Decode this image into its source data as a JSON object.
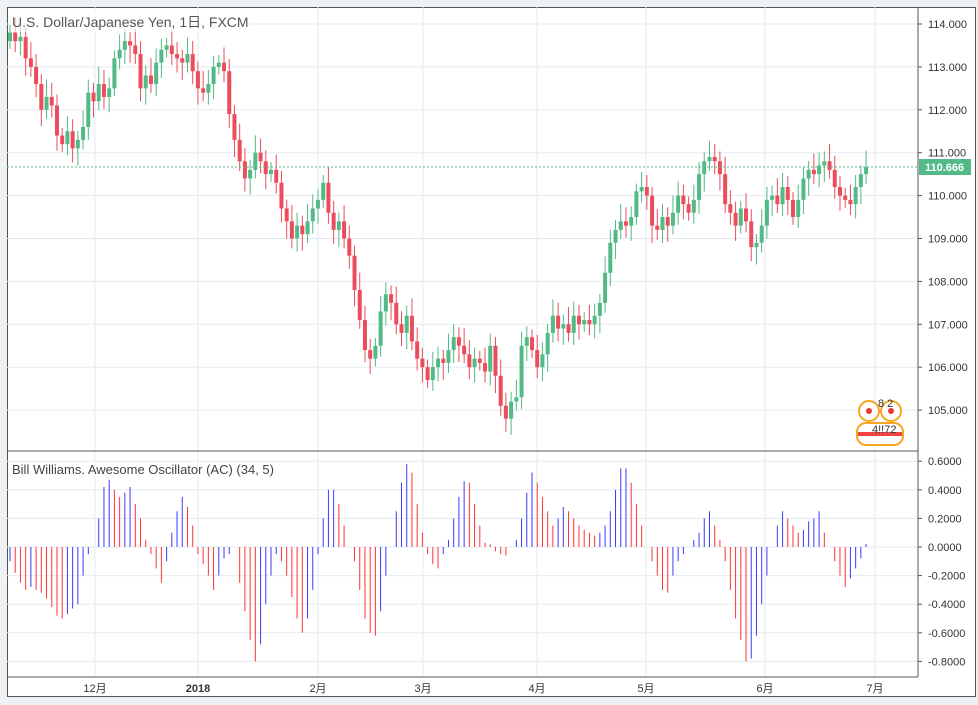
{
  "header": {
    "title": "U.S. Dollar/Japanese Yen, 1日, FXCM"
  },
  "indicator": {
    "title": "Bill Williams. Awesome Oscillator (AC) (34, 5)"
  },
  "colors": {
    "up": "#53b987",
    "down": "#eb4d5c",
    "ac_up": "#3a3aff",
    "ac_down": "#ff3333",
    "last_price": "#53b987"
  },
  "last_price": {
    "value": 110.666,
    "label": "110.666"
  },
  "badges": {
    "top": "8  2",
    "bottom": "4!!72"
  },
  "chart_data": [
    {
      "type": "candlestick",
      "title": "U.S. Dollar/Japanese Yen, 1日, FXCM",
      "ylim": [
        104.6,
        114.4
      ],
      "yticks": [
        "114.000",
        "113.000",
        "112.000",
        "111.000",
        "110.000",
        "109.000",
        "108.000",
        "107.000",
        "106.000",
        "105.000"
      ],
      "xticks": [
        "12月",
        "2018",
        "2月",
        "3月",
        "4月",
        "5月",
        "6月",
        "7月"
      ],
      "open_first": 113.6,
      "close": [
        113.8,
        113.6,
        113.7,
        113.2,
        113.0,
        112.6,
        112.0,
        112.3,
        112.1,
        111.4,
        111.2,
        111.5,
        111.1,
        111.3,
        111.6,
        112.4,
        112.2,
        112.6,
        112.3,
        112.5,
        113.2,
        113.4,
        113.6,
        113.5,
        113.3,
        112.5,
        112.8,
        112.6,
        113.1,
        113.4,
        113.5,
        113.3,
        113.2,
        113.1,
        113.3,
        112.9,
        112.5,
        112.4,
        112.6,
        113.0,
        113.1,
        112.9,
        111.9,
        111.3,
        110.8,
        110.4,
        110.6,
        111.0,
        110.8,
        110.5,
        110.6,
        110.3,
        109.7,
        109.4,
        109.0,
        109.3,
        109.1,
        109.4,
        109.7,
        109.9,
        110.3,
        109.6,
        109.2,
        109.4,
        109.0,
        108.6,
        107.8,
        107.1,
        106.4,
        106.2,
        106.5,
        107.3,
        107.7,
        107.5,
        107.0,
        106.8,
        107.2,
        106.6,
        106.2,
        106.0,
        105.7,
        106.0,
        106.2,
        106.1,
        106.4,
        106.7,
        106.5,
        106.3,
        106.0,
        106.2,
        106.1,
        105.9,
        106.5,
        105.8,
        105.1,
        104.8,
        105.2,
        105.3,
        106.5,
        106.7,
        106.4,
        106.0,
        106.3,
        106.8,
        107.2,
        106.9,
        107.0,
        106.8,
        107.2,
        107.0,
        107.1,
        107.0,
        107.2,
        107.5,
        108.2,
        108.9,
        109.2,
        109.4,
        109.3,
        109.5,
        110.1,
        110.2,
        110.0,
        109.3,
        109.2,
        109.5,
        109.3,
        109.6,
        110.0,
        109.8,
        109.6,
        109.9,
        110.5,
        110.8,
        110.9,
        110.8,
        110.5,
        109.8,
        109.6,
        109.3,
        109.7,
        109.4,
        108.8,
        108.9,
        109.3,
        109.9,
        110.0,
        109.8,
        110.2,
        109.9,
        109.5,
        109.9,
        110.4,
        110.6,
        110.5,
        110.7,
        110.8,
        110.6,
        110.2,
        110.0,
        109.9,
        109.8,
        110.2,
        110.5,
        110.666
      ]
    },
    {
      "type": "bar",
      "title": "Bill Williams. Awesome Oscillator (AC) (34, 5)",
      "ylim": [
        -0.9,
        0.62
      ],
      "yticks": [
        "0.6000",
        "0.4000",
        "0.2000",
        "0.0000",
        "-0.2000",
        "-0.4000",
        "-0.6000",
        "-0.8000"
      ],
      "values": [
        -0.1,
        -0.18,
        -0.25,
        -0.3,
        -0.28,
        -0.3,
        -0.32,
        -0.36,
        -0.42,
        -0.48,
        -0.5,
        -0.47,
        -0.43,
        -0.4,
        -0.2,
        -0.05,
        0.0,
        0.2,
        0.42,
        0.47,
        0.4,
        0.35,
        0.38,
        0.42,
        0.3,
        0.2,
        0.05,
        -0.05,
        -0.15,
        -0.25,
        -0.1,
        0.1,
        0.25,
        0.35,
        0.28,
        0.15,
        -0.05,
        -0.12,
        -0.2,
        -0.3,
        -0.2,
        -0.08,
        -0.05,
        0.0,
        -0.25,
        -0.45,
        -0.65,
        -0.8,
        -0.68,
        -0.4,
        -0.2,
        -0.05,
        -0.1,
        -0.2,
        -0.35,
        -0.5,
        -0.6,
        -0.5,
        -0.3,
        -0.05,
        0.2,
        0.4,
        0.4,
        0.3,
        0.15,
        0.0,
        -0.1,
        -0.3,
        -0.5,
        -0.6,
        -0.62,
        -0.45,
        -0.2,
        0.0,
        0.25,
        0.45,
        0.58,
        0.52,
        0.3,
        0.1,
        -0.05,
        -0.12,
        -0.15,
        -0.05,
        0.05,
        0.2,
        0.35,
        0.46,
        0.45,
        0.3,
        0.15,
        0.03,
        0.02,
        -0.03,
        -0.05,
        -0.06,
        0.0,
        0.05,
        0.2,
        0.38,
        0.52,
        0.45,
        0.35,
        0.25,
        0.15,
        0.2,
        0.28,
        0.25,
        0.2,
        0.15,
        0.12,
        0.1,
        0.08,
        0.1,
        0.15,
        0.25,
        0.4,
        0.55,
        0.55,
        0.45,
        0.3,
        0.15,
        0.0,
        -0.1,
        -0.2,
        -0.3,
        -0.32,
        -0.2,
        -0.1,
        -0.05,
        0.0,
        0.05,
        0.1,
        0.2,
        0.25,
        0.15,
        0.05,
        -0.1,
        -0.3,
        -0.5,
        -0.65,
        -0.8,
        -0.78,
        -0.62,
        -0.4,
        -0.2,
        0.0,
        0.15,
        0.25,
        0.2,
        0.15,
        0.1,
        0.12,
        0.18,
        0.2,
        0.25,
        0.1,
        0.0,
        -0.1,
        -0.2,
        -0.28,
        -0.22,
        -0.15,
        -0.08,
        0.02
      ]
    }
  ]
}
